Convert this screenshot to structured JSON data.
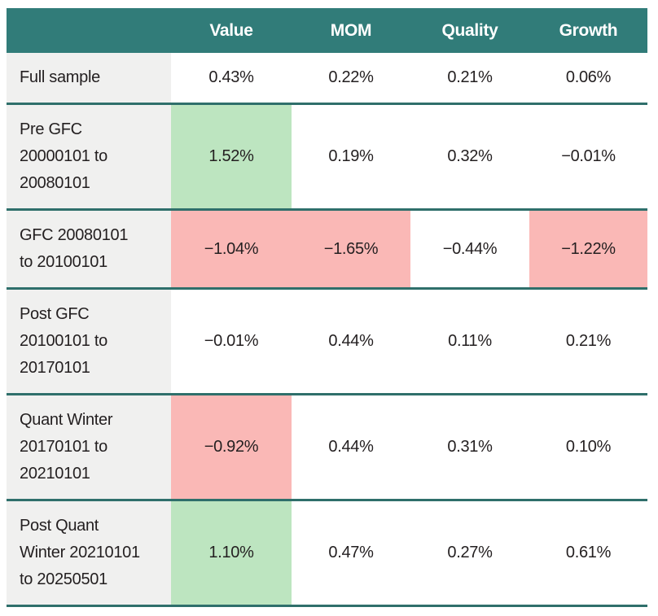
{
  "colors": {
    "header_bg": "#317C79",
    "separator": "#2F6F6B",
    "positive_bg": "#BDE5C0",
    "negative_bg": "#FAB8B6",
    "label_col_bg": "#F0F0EF",
    "header_text": "#FFFFFF",
    "body_text": "#231F20"
  },
  "table": {
    "columns": [
      "",
      "Value",
      "MOM",
      "Quality",
      "Growth"
    ],
    "rows": [
      {
        "label": "Full sample",
        "cells": [
          {
            "value": "0.43%",
            "highlight": "none"
          },
          {
            "value": "0.22%",
            "highlight": "none"
          },
          {
            "value": "0.21%",
            "highlight": "none"
          },
          {
            "value": "0.06%",
            "highlight": "none"
          }
        ]
      },
      {
        "label": "Pre GFC\n20000101 to\n20080101",
        "cells": [
          {
            "value": "1.52%",
            "highlight": "green"
          },
          {
            "value": "0.19%",
            "highlight": "none"
          },
          {
            "value": "0.32%",
            "highlight": "none"
          },
          {
            "value": "−0.01%",
            "highlight": "none"
          }
        ]
      },
      {
        "label": "GFC 20080101\nto 20100101",
        "cells": [
          {
            "value": "−1.04%",
            "highlight": "red"
          },
          {
            "value": "−1.65%",
            "highlight": "red"
          },
          {
            "value": "−0.44%",
            "highlight": "none"
          },
          {
            "value": "−1.22%",
            "highlight": "red"
          }
        ]
      },
      {
        "label": "Post GFC\n20100101 to\n20170101",
        "cells": [
          {
            "value": "−0.01%",
            "highlight": "none"
          },
          {
            "value": "0.44%",
            "highlight": "none"
          },
          {
            "value": "0.11%",
            "highlight": "none"
          },
          {
            "value": "0.21%",
            "highlight": "none"
          }
        ]
      },
      {
        "label": "Quant Winter\n20170101 to\n20210101",
        "cells": [
          {
            "value": "−0.92%",
            "highlight": "red"
          },
          {
            "value": "0.44%",
            "highlight": "none"
          },
          {
            "value": "0.31%",
            "highlight": "none"
          },
          {
            "value": "0.10%",
            "highlight": "none"
          }
        ]
      },
      {
        "label": "Post Quant\nWinter 20210101\nto 20250501",
        "cells": [
          {
            "value": "1.10%",
            "highlight": "green"
          },
          {
            "value": "0.47%",
            "highlight": "none"
          },
          {
            "value": "0.27%",
            "highlight": "none"
          },
          {
            "value": "0.61%",
            "highlight": "none"
          }
        ]
      }
    ]
  },
  "chart_data": {
    "type": "table",
    "title": "",
    "row_labels": [
      "Full sample",
      "Pre GFC 20000101 to 20080101",
      "GFC 20080101 to 20100101",
      "Post GFC 20100101 to 20170101",
      "Quant Winter 20170101 to 20210101",
      "Post Quant Winter 20210101 to 20250501"
    ],
    "columns": [
      "Value",
      "MOM",
      "Quality",
      "Growth"
    ],
    "series": [
      {
        "name": "Value",
        "values": [
          0.43,
          1.52,
          -1.04,
          -0.01,
          -0.92,
          1.1
        ]
      },
      {
        "name": "MOM",
        "values": [
          0.22,
          0.19,
          -1.65,
          0.44,
          0.44,
          0.47
        ]
      },
      {
        "name": "Quality",
        "values": [
          0.21,
          0.32,
          -0.44,
          0.11,
          0.31,
          0.27
        ]
      },
      {
        "name": "Growth",
        "values": [
          0.06,
          -0.01,
          -1.22,
          0.21,
          0.1,
          0.61
        ]
      }
    ],
    "units": "%",
    "highlight_positive_cells": [
      [
        "Pre GFC 20000101 to 20080101",
        "Value"
      ],
      [
        "Post Quant Winter 20210101 to 20250501",
        "Value"
      ]
    ],
    "highlight_negative_cells": [
      [
        "GFC 20080101 to 20100101",
        "Value"
      ],
      [
        "GFC 20080101 to 20100101",
        "MOM"
      ],
      [
        "GFC 20080101 to 20100101",
        "Growth"
      ],
      [
        "Quant Winter 20170101 to 20210101",
        "Value"
      ]
    ]
  }
}
